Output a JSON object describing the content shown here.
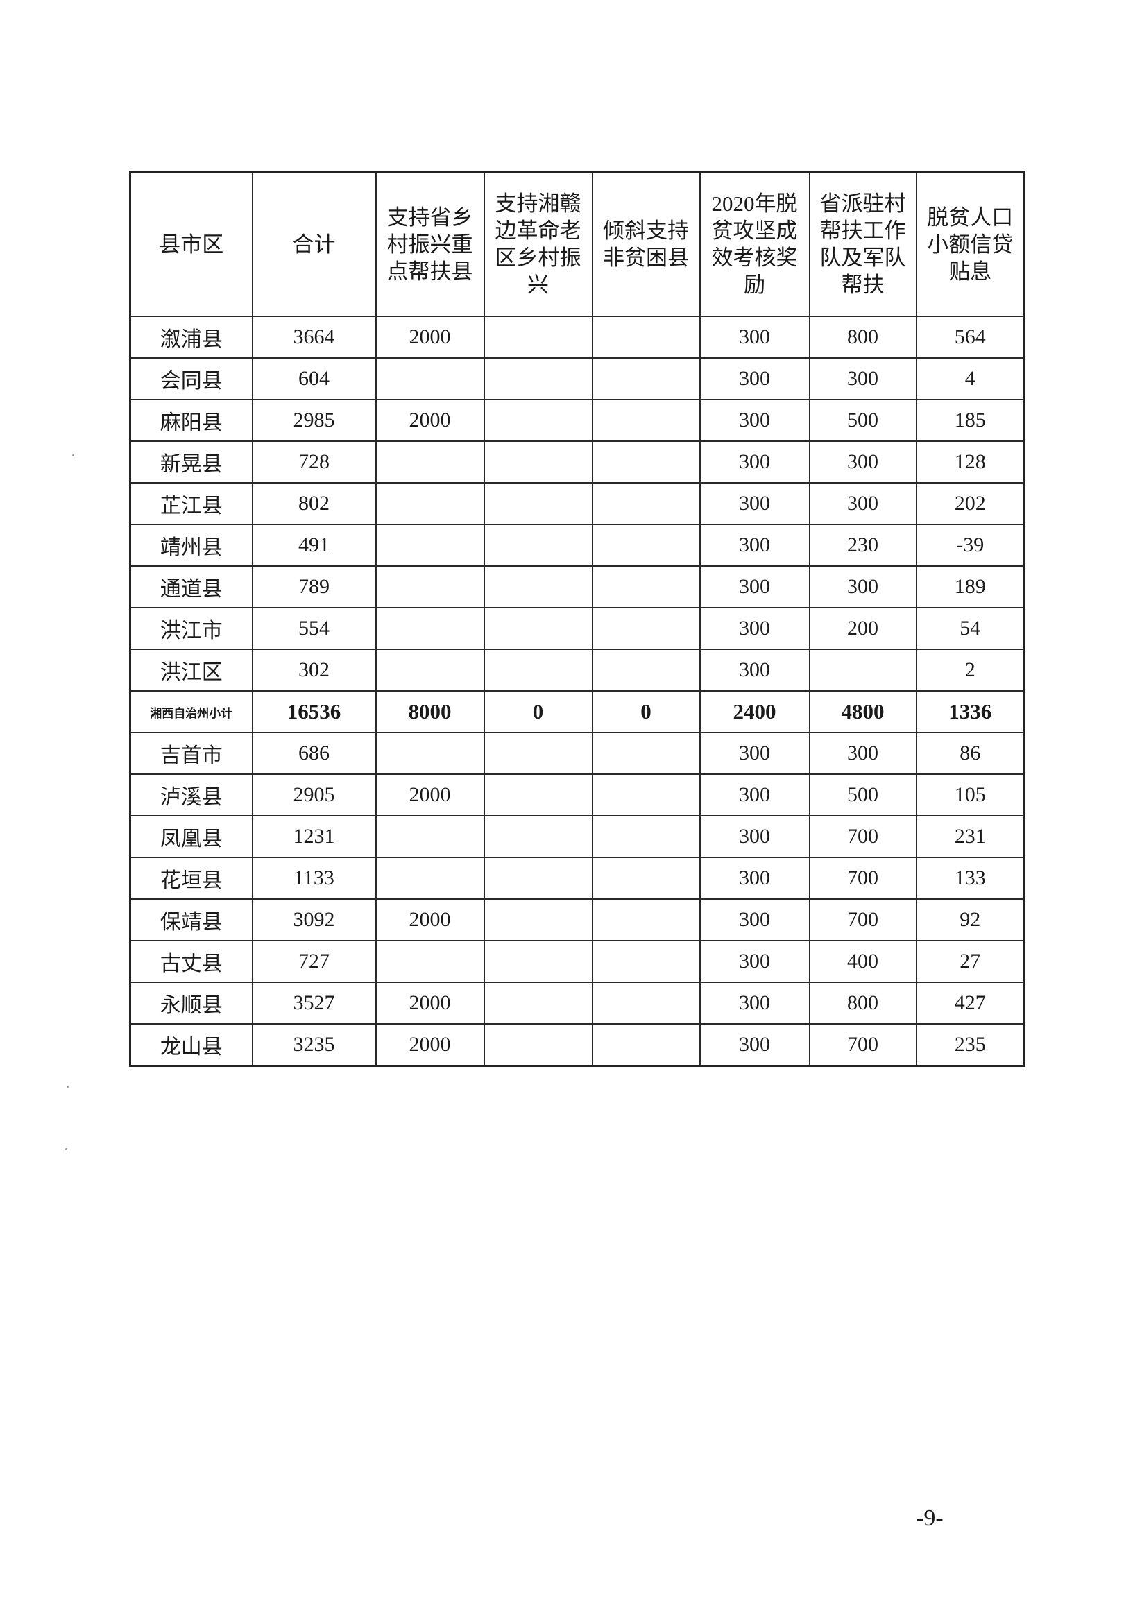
{
  "table": {
    "headers": [
      "县市区",
      "合计",
      "支持省乡村振兴重点帮扶县",
      "支持湘赣边革命老区乡村振兴",
      "倾斜支持非贫困县",
      "2020年脱贫攻坚成效考核奖励",
      "省派驻村帮扶工作队及军队帮扶",
      "脱贫人口小额信贷贴息"
    ],
    "rows": [
      [
        "溆浦县",
        "3664",
        "2000",
        "",
        "",
        "300",
        "800",
        "564"
      ],
      [
        "会同县",
        "604",
        "",
        "",
        "",
        "300",
        "300",
        "4"
      ],
      [
        "麻阳县",
        "2985",
        "2000",
        "",
        "",
        "300",
        "500",
        "185"
      ],
      [
        "新晃县",
        "728",
        "",
        "",
        "",
        "300",
        "300",
        "128"
      ],
      [
        "芷江县",
        "802",
        "",
        "",
        "",
        "300",
        "300",
        "202"
      ],
      [
        "靖州县",
        "491",
        "",
        "",
        "",
        "300",
        "230",
        "-39"
      ],
      [
        "通道县",
        "789",
        "",
        "",
        "",
        "300",
        "300",
        "189"
      ],
      [
        "洪江市",
        "554",
        "",
        "",
        "",
        "300",
        "200",
        "54"
      ],
      [
        "洪江区",
        "302",
        "",
        "",
        "",
        "300",
        "",
        "2"
      ],
      [
        "湘西自治州小计",
        "16536",
        "8000",
        "0",
        "0",
        "2400",
        "4800",
        "1336"
      ],
      [
        "吉首市",
        "686",
        "",
        "",
        "",
        "300",
        "300",
        "86"
      ],
      [
        "泸溪县",
        "2905",
        "2000",
        "",
        "",
        "300",
        "500",
        "105"
      ],
      [
        "凤凰县",
        "1231",
        "",
        "",
        "",
        "300",
        "700",
        "231"
      ],
      [
        "花垣县",
        "1133",
        "",
        "",
        "",
        "300",
        "700",
        "133"
      ],
      [
        "保靖县",
        "3092",
        "2000",
        "",
        "",
        "300",
        "700",
        "92"
      ],
      [
        "古丈县",
        "727",
        "",
        "",
        "",
        "300",
        "400",
        "27"
      ],
      [
        "永顺县",
        "3527",
        "2000",
        "",
        "",
        "300",
        "800",
        "427"
      ],
      [
        "龙山县",
        "3235",
        "2000",
        "",
        "",
        "300",
        "700",
        "235"
      ]
    ],
    "subtotal_row_index": 9
  },
  "page_number": "-9-"
}
